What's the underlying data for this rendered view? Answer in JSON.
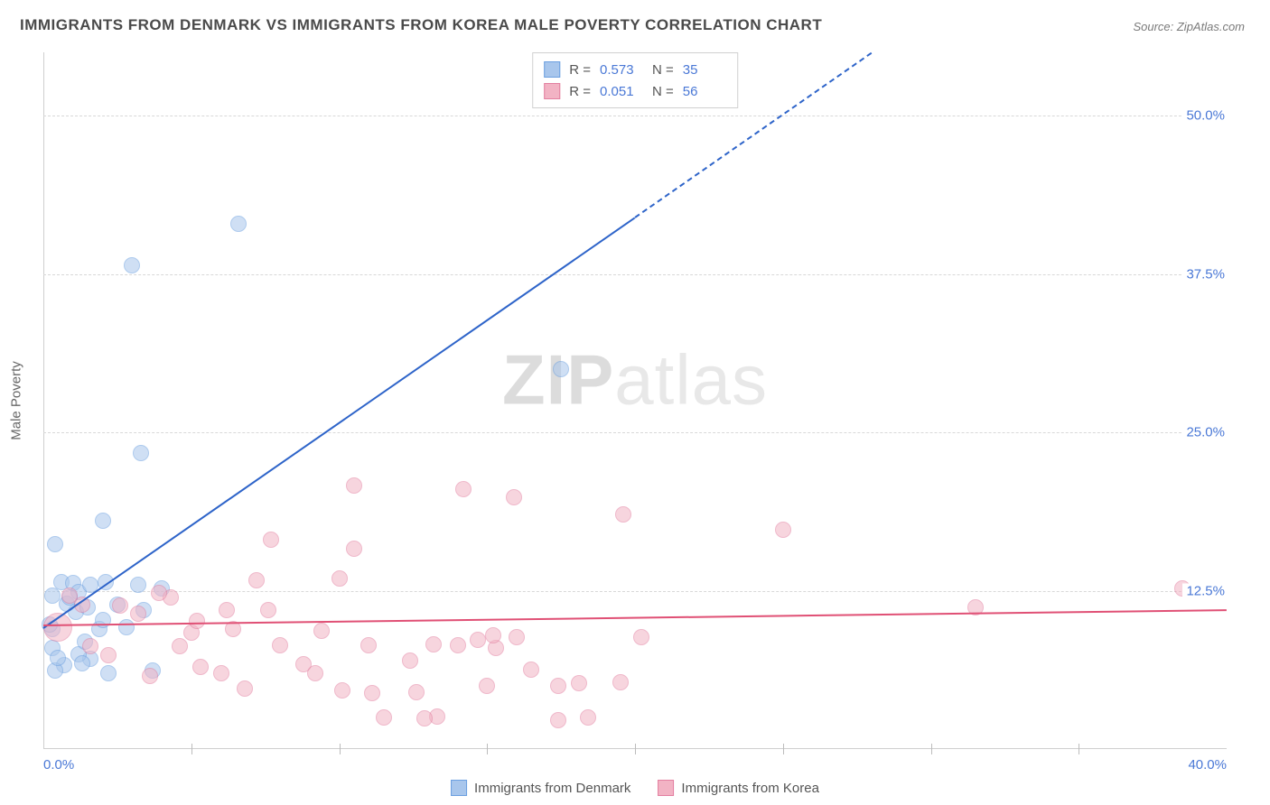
{
  "title": "IMMIGRANTS FROM DENMARK VS IMMIGRANTS FROM KOREA MALE POVERTY CORRELATION CHART",
  "source": "Source: ZipAtlas.com",
  "ylabel": "Male Poverty",
  "watermark_bold": "ZIP",
  "watermark_light": "atlas",
  "chart": {
    "type": "scatter-with-regression",
    "xlim": [
      0,
      40
    ],
    "ylim": [
      0,
      55
    ],
    "ytick_values": [
      12.5,
      25.0,
      37.5,
      50.0
    ],
    "ytick_labels": [
      "12.5%",
      "25.0%",
      "37.5%",
      "50.0%"
    ],
    "xtick_values": [
      0,
      5,
      10,
      15,
      20,
      25,
      30,
      35,
      40
    ],
    "xtick_labels": {
      "0": "0.0%",
      "40": "40.0%"
    },
    "grid_color": "#d8d8d8",
    "axis_color": "#cfcfcf",
    "background": "#ffffff",
    "tick_label_color": "#4a78d6"
  },
  "series": [
    {
      "name": "Immigrants from Denmark",
      "legend_label": "Immigrants from Denmark",
      "fill": "#a8c6ec",
      "stroke": "#6b9fe0",
      "fill_opacity": 0.55,
      "marker_r": 9,
      "stats": {
        "R_label": "R =",
        "R": "0.573",
        "N_label": "N =",
        "N": "35"
      },
      "regression": {
        "color": "#2e64c9",
        "width": 2,
        "x1": 0,
        "y1": 9.6,
        "x2": 20,
        "y2": 42,
        "dash_x1": 20,
        "dash_y1": 42,
        "dash_x2": 28,
        "dash_y2": 55
      },
      "points": [
        [
          0.3,
          9.5
        ],
        [
          0.2,
          9.8
        ],
        [
          0.6,
          13.2
        ],
        [
          1.0,
          13.1
        ],
        [
          1.2,
          12.4
        ],
        [
          0.4,
          16.2
        ],
        [
          1.6,
          13.0
        ],
        [
          2.1,
          13.2
        ],
        [
          3.2,
          13.0
        ],
        [
          4.0,
          12.7
        ],
        [
          2.0,
          18.0
        ],
        [
          3.3,
          23.4
        ],
        [
          6.6,
          41.5
        ],
        [
          3.0,
          38.2
        ],
        [
          1.6,
          7.1
        ],
        [
          1.2,
          7.5
        ],
        [
          1.3,
          6.8
        ],
        [
          0.7,
          6.6
        ],
        [
          0.4,
          6.2
        ],
        [
          0.3,
          12.1
        ],
        [
          1.1,
          10.8
        ],
        [
          1.5,
          11.2
        ],
        [
          0.8,
          11.5
        ],
        [
          2.5,
          11.4
        ],
        [
          3.4,
          11.0
        ],
        [
          2.8,
          9.6
        ],
        [
          1.9,
          9.5
        ],
        [
          0.3,
          8.0
        ],
        [
          0.5,
          7.2
        ],
        [
          2.2,
          6.0
        ],
        [
          3.7,
          6.2
        ],
        [
          17.5,
          30.0
        ],
        [
          2.0,
          10.2
        ],
        [
          1.4,
          8.5
        ],
        [
          0.9,
          12.0
        ]
      ]
    },
    {
      "name": "Immigrants from Korea",
      "legend_label": "Immigrants from Korea",
      "fill": "#f2b3c4",
      "stroke": "#e37fa0",
      "fill_opacity": 0.55,
      "marker_r": 9,
      "stats": {
        "R_label": "R =",
        "R": "0.051",
        "N_label": "N =",
        "N": "56"
      },
      "regression": {
        "color": "#e05075",
        "width": 2,
        "x1": 0,
        "y1": 9.8,
        "x2": 40,
        "y2": 11.0
      },
      "points": [
        [
          0.5,
          9.6,
          16
        ],
        [
          1.3,
          11.4
        ],
        [
          2.6,
          11.3
        ],
        [
          3.2,
          10.7
        ],
        [
          4.3,
          12.0
        ],
        [
          5.0,
          9.2
        ],
        [
          6.2,
          11.0
        ],
        [
          6.4,
          9.5
        ],
        [
          7.2,
          13.3
        ],
        [
          7.6,
          11.0
        ],
        [
          8.0,
          8.2
        ],
        [
          8.8,
          6.7
        ],
        [
          9.2,
          6.0
        ],
        [
          10.0,
          13.5
        ],
        [
          10.5,
          20.8
        ],
        [
          10.5,
          15.8
        ],
        [
          11.1,
          4.4
        ],
        [
          15.9,
          19.9
        ],
        [
          11.5,
          2.5
        ],
        [
          12.4,
          7.0
        ],
        [
          12.6,
          4.5
        ],
        [
          13.3,
          2.6
        ],
        [
          14.0,
          8.2
        ],
        [
          14.7,
          8.6
        ],
        [
          15.3,
          8.0
        ],
        [
          15.0,
          5.0
        ],
        [
          16.0,
          8.8
        ],
        [
          17.4,
          5.0
        ],
        [
          17.4,
          2.3
        ],
        [
          18.1,
          5.2
        ],
        [
          19.6,
          18.5
        ],
        [
          18.4,
          2.5
        ],
        [
          25.0,
          17.3
        ],
        [
          38.5,
          12.7
        ],
        [
          31.5,
          11.2
        ],
        [
          20.2,
          8.8
        ],
        [
          19.5,
          5.3
        ],
        [
          16.5,
          6.3
        ],
        [
          15.2,
          9.0
        ],
        [
          14.2,
          20.5
        ],
        [
          13.2,
          8.3
        ],
        [
          12.9,
          2.4
        ],
        [
          11.0,
          8.2
        ],
        [
          10.1,
          4.6
        ],
        [
          9.4,
          9.3
        ],
        [
          7.7,
          16.5
        ],
        [
          6.8,
          4.8
        ],
        [
          6.0,
          6.0
        ],
        [
          5.3,
          6.5
        ],
        [
          5.2,
          10.1
        ],
        [
          4.6,
          8.1
        ],
        [
          3.6,
          5.8
        ],
        [
          3.9,
          12.3
        ],
        [
          2.2,
          7.4
        ],
        [
          1.6,
          8.1
        ],
        [
          0.9,
          12.1
        ]
      ]
    }
  ]
}
